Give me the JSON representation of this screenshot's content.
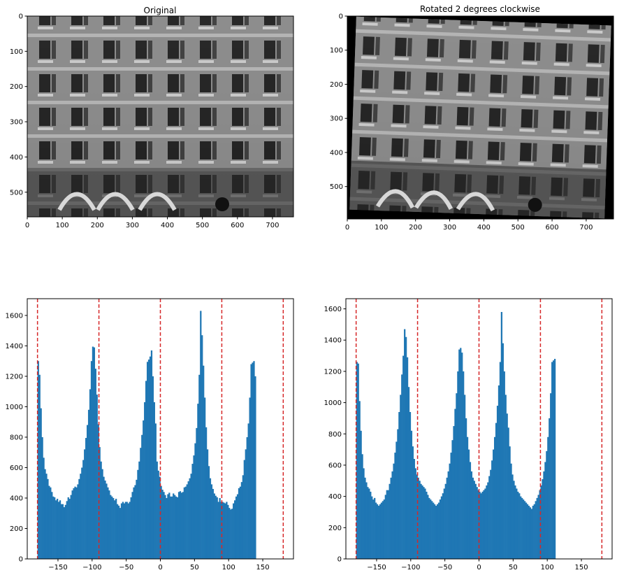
{
  "chart_data": [
    {
      "type": "image",
      "title": "Original",
      "xlim": [
        0,
        760
      ],
      "ylim": [
        570,
        0
      ],
      "xticks": [
        0,
        100,
        200,
        300,
        400,
        500,
        600,
        700
      ],
      "yticks": [
        0,
        100,
        200,
        300,
        400,
        500
      ],
      "image_description": "grayscale photo of a building facade"
    },
    {
      "type": "image",
      "title": "Rotated 2 degrees clockwise",
      "xlim": [
        0,
        780
      ],
      "ylim": [
        595,
        0
      ],
      "xticks": [
        0,
        100,
        200,
        300,
        400,
        500,
        600,
        700
      ],
      "yticks": [
        0,
        100,
        200,
        300,
        400,
        500
      ],
      "image_description": "same facade photo rotated 2 degrees clockwise with black corners"
    },
    {
      "type": "bar",
      "title": "",
      "xlim": [
        -195,
        195
      ],
      "ylim": [
        0,
        1710
      ],
      "xticks": [
        -150,
        -100,
        -50,
        0,
        50,
        100,
        150
      ],
      "yticks": [
        0,
        200,
        400,
        600,
        800,
        1000,
        1200,
        1400,
        1600
      ],
      "vlines": [
        -180,
        -90,
        0,
        90,
        180
      ],
      "vline_color": "#d62728",
      "bar_color": "#1f77b4",
      "bin_start": -180,
      "bin_width": 2,
      "values": [
        1300,
        1210,
        990,
        800,
        665,
        590,
        560,
        525,
        480,
        470,
        440,
        410,
        405,
        385,
        395,
        375,
        385,
        360,
        360,
        340,
        355,
        380,
        405,
        395,
        420,
        450,
        465,
        475,
        470,
        490,
        525,
        560,
        600,
        650,
        720,
        795,
        880,
        980,
        1115,
        1300,
        1395,
        1390,
        1250,
        1080,
        885,
        735,
        640,
        590,
        540,
        515,
        495,
        470,
        450,
        420,
        410,
        400,
        385,
        395,
        360,
        350,
        335,
        365,
        375,
        365,
        375,
        375,
        365,
        375,
        405,
        440,
        470,
        485,
        520,
        585,
        640,
        730,
        815,
        910,
        1030,
        1170,
        1295,
        1310,
        1330,
        1370,
        1200,
        1030,
        890,
        640,
        580,
        540,
        480,
        455,
        440,
        420,
        400,
        425,
        435,
        410,
        410,
        430,
        420,
        410,
        405,
        440,
        445,
        435,
        440,
        470,
        475,
        490,
        510,
        530,
        560,
        625,
        680,
        760,
        860,
        1020,
        1210,
        1630,
        1470,
        1270,
        1060,
        865,
        720,
        610,
        530,
        490,
        460,
        430,
        415,
        405,
        375,
        400,
        375,
        375,
        370,
        365,
        375,
        355,
        335,
        325,
        330,
        365,
        385,
        410,
        425,
        465,
        475,
        505,
        550,
        650,
        720,
        800,
        890,
        1060,
        1280,
        1290,
        1300,
        1200
      ]
    },
    {
      "type": "bar",
      "title": "",
      "xlim": [
        -195,
        195
      ],
      "ylim": [
        0,
        1665
      ],
      "xticks": [
        -150,
        -100,
        -50,
        0,
        50,
        100,
        150
      ],
      "yticks": [
        0,
        200,
        400,
        600,
        800,
        1000,
        1200,
        1400,
        1600
      ],
      "vlines": [
        -180,
        -90,
        0,
        90,
        180
      ],
      "vline_color": "#d62728",
      "bar_color": "#1f77b4",
      "bin_start": -180,
      "bin_width": 2,
      "values": [
        1260,
        1250,
        1010,
        820,
        670,
        580,
        520,
        490,
        460,
        450,
        430,
        400,
        380,
        390,
        360,
        350,
        340,
        350,
        360,
        370,
        380,
        410,
        440,
        440,
        480,
        520,
        560,
        610,
        680,
        750,
        830,
        940,
        1050,
        1180,
        1300,
        1470,
        1420,
        1290,
        1100,
        940,
        820,
        720,
        640,
        580,
        540,
        520,
        500,
        480,
        470,
        460,
        450,
        430,
        410,
        390,
        380,
        370,
        360,
        350,
        340,
        350,
        360,
        380,
        400,
        420,
        450,
        480,
        520,
        560,
        610,
        680,
        760,
        850,
        960,
        1060,
        1200,
        1340,
        1350,
        1320,
        1200,
        1050,
        900,
        780,
        700,
        620,
        560,
        520,
        500,
        480,
        460,
        440,
        430,
        420,
        430,
        440,
        450,
        470,
        490,
        530,
        570,
        630,
        700,
        780,
        870,
        980,
        1110,
        1260,
        1580,
        1380,
        1200,
        1050,
        930,
        840,
        720,
        610,
        540,
        500,
        470,
        450,
        430,
        420,
        400,
        390,
        380,
        370,
        360,
        350,
        340,
        330,
        320,
        340,
        350,
        370,
        390,
        410,
        440,
        470,
        510,
        560,
        620,
        690,
        780,
        900,
        1060,
        1260,
        1270,
        1280
      ]
    }
  ]
}
